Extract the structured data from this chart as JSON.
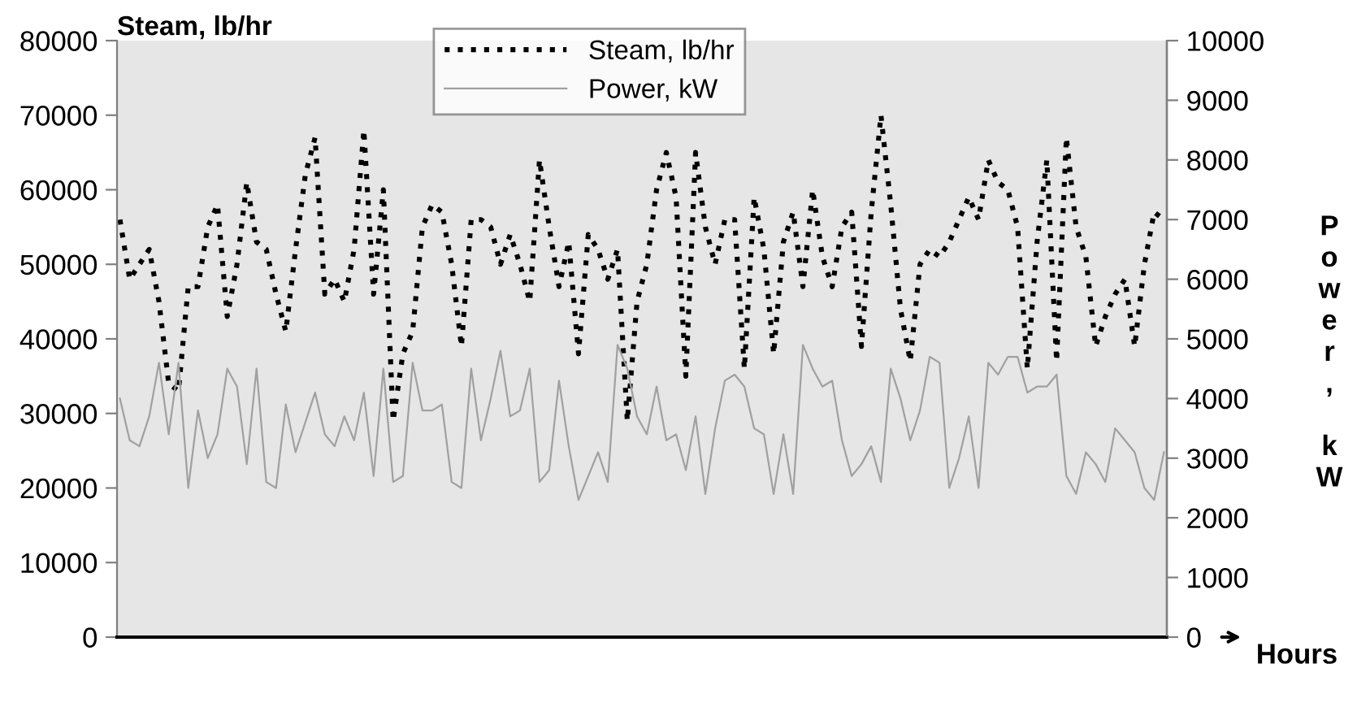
{
  "chart_data": {
    "type": "line",
    "ylabel": "Steam, lb/hr",
    "y2label": "Power, kW",
    "xlabel": "Hours",
    "categories": [
      null,
      null,
      null,
      null,
      null,
      null,
      null,
      null,
      null,
      null,
      null,
      null,
      null,
      null,
      null,
      null,
      null,
      null,
      null,
      null,
      null,
      null,
      null,
      null,
      null,
      null,
      null,
      null,
      null,
      null,
      null,
      null,
      null,
      null,
      null,
      null,
      null,
      null,
      null,
      null,
      null,
      null,
      null,
      null,
      null,
      null,
      null,
      null,
      null,
      null,
      null,
      null,
      null,
      null,
      null,
      null,
      null,
      null,
      null,
      null,
      null,
      null,
      null,
      null,
      null,
      null,
      null,
      null,
      null,
      null,
      null,
      null,
      null,
      null,
      null,
      null,
      null,
      null,
      null,
      null,
      null,
      null,
      null,
      null,
      null,
      null,
      null,
      null,
      null,
      null,
      null,
      null,
      null,
      null,
      null,
      null,
      null,
      null,
      null,
      null,
      null,
      null,
      null,
      null,
      null,
      null,
      null,
      null
    ],
    "series": [
      {
        "name": "Steam, lb/hr",
        "color": "#000000",
        "line_style": "dotted",
        "values": [
          56000,
          48000,
          50000,
          52000,
          45000,
          34000,
          33000,
          47000,
          47000,
          55000,
          58000,
          43000,
          50000,
          61000,
          53000,
          52000,
          46000,
          41000,
          52000,
          62000,
          67000,
          46000,
          48000,
          45000,
          52000,
          68000,
          46000,
          60000,
          29000,
          38000,
          41000,
          55000,
          58000,
          57000,
          50000,
          39000,
          56000,
          56000,
          55000,
          50000,
          54000,
          50000,
          45000,
          64000,
          55000,
          47000,
          53000,
          38000,
          54000,
          52000,
          48000,
          52000,
          29000,
          45000,
          50000,
          60000,
          65000,
          59000,
          35000,
          65000,
          55000,
          50000,
          56000,
          56000,
          36000,
          59000,
          52000,
          38000,
          53000,
          57000,
          47000,
          60000,
          51000,
          47000,
          55000,
          57000,
          39000,
          57000,
          70000,
          58000,
          44000,
          37000,
          50000,
          52000,
          51000,
          53000,
          56000,
          59000,
          56000,
          64000,
          61000,
          60000,
          55000,
          36000,
          53000,
          64000,
          37000,
          67000,
          55000,
          51000,
          39000,
          43000,
          46000,
          48000,
          39000,
          50000,
          57000,
          56000
        ]
      },
      {
        "name": "Power, kW",
        "color": "#a0a0a0",
        "line_style": "solid",
        "axis": "y2",
        "values": [
          4000,
          3300,
          3200,
          3700,
          4600,
          3400,
          4600,
          2500,
          3800,
          3000,
          3400,
          4500,
          4200,
          2900,
          4500,
          2600,
          2500,
          3900,
          3100,
          3600,
          4100,
          3400,
          3200,
          3700,
          3300,
          4100,
          2700,
          4500,
          2600,
          2700,
          4600,
          3800,
          3800,
          3900,
          2600,
          2500,
          4500,
          3300,
          4000,
          4800,
          3700,
          3800,
          4500,
          2600,
          2800,
          4300,
          3200,
          2300,
          2700,
          3100,
          2600,
          4900,
          4500,
          3700,
          3400,
          4200,
          3300,
          3400,
          2800,
          3700,
          2400,
          3500,
          4300,
          4400,
          4200,
          3500,
          3400,
          2400,
          3400,
          2400,
          4900,
          4500,
          4200,
          4300,
          3300,
          2700,
          2900,
          3200,
          2600,
          4500,
          4000,
          3300,
          3800,
          4700,
          4600,
          2500,
          3000,
          3700,
          2500,
          4600,
          4400,
          4700,
          4700,
          4100,
          4200,
          4200,
          4400,
          2700,
          2400,
          3100,
          2900,
          2600,
          3500,
          3300,
          3100,
          2500,
          2300,
          3100
        ]
      }
    ],
    "ylim": [
      0,
      80000
    ],
    "yticks": [
      0,
      10000,
      20000,
      30000,
      40000,
      50000,
      60000,
      70000,
      80000
    ],
    "y2lim": [
      0,
      10000
    ],
    "y2ticks": [
      0,
      1000,
      2000,
      3000,
      4000,
      5000,
      6000,
      7000,
      8000,
      9000,
      10000
    ],
    "tick_labels": "y",
    "grid": false,
    "legend": "top",
    "marker": "none"
  }
}
